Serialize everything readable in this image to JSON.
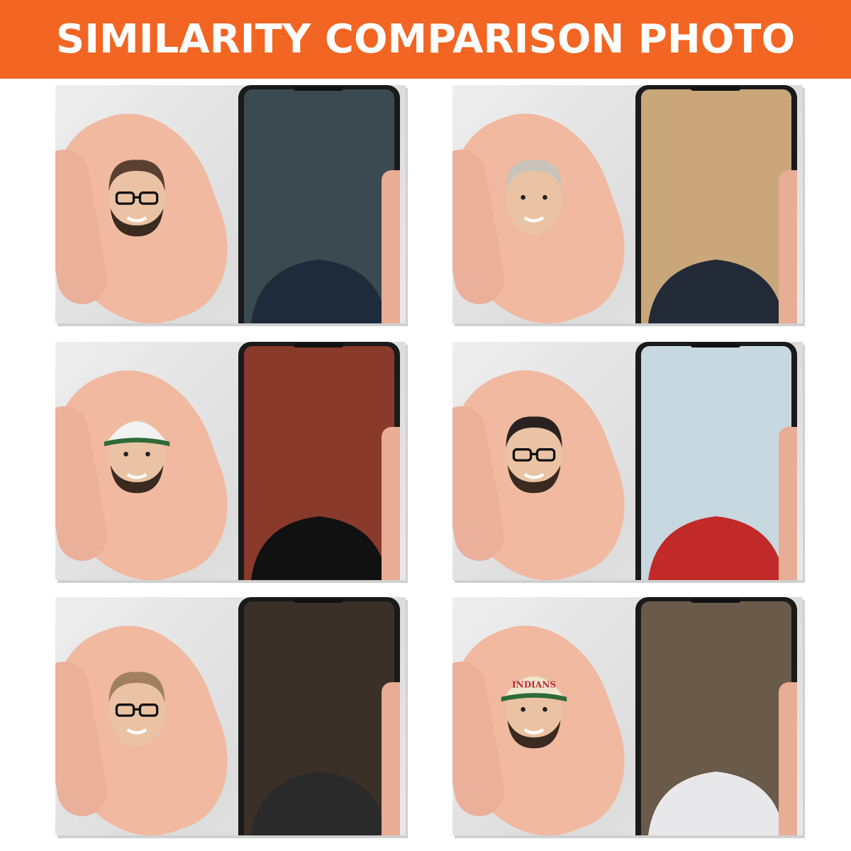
{
  "header": {
    "title": "SIMILARITY COMPARISON PHOTO",
    "background": "#f26522"
  },
  "panels": [
    {
      "id": "man-beard-glasses",
      "screen_bg": "#3a4a50",
      "shirt": "#1f2a3a",
      "hair": "#5a4030",
      "beard": true,
      "glasses": true,
      "cap": null
    },
    {
      "id": "man-suit-grey-hair",
      "screen_bg": "#c9a77a",
      "shirt": "#222a38",
      "hair": "#c8c4bc",
      "beard": false,
      "glasses": false,
      "cap": null
    },
    {
      "id": "man-white-cap",
      "screen_bg": "#8a3a2a",
      "shirt": "#111111",
      "hair": "#222",
      "beard": true,
      "glasses": false,
      "cap": {
        "color": "#f2f2f2",
        "text": ""
      }
    },
    {
      "id": "man-red-shirt-glasses",
      "screen_bg": "#c8d8e0",
      "shirt": "#c22a2a",
      "hair": "#2a2220",
      "beard": true,
      "glasses": true,
      "cap": null
    },
    {
      "id": "man-selfie-glasses",
      "screen_bg": "#3a3028",
      "shirt": "#2a2a2a",
      "hair": "#a08060",
      "beard": false,
      "glasses": true,
      "cap": null
    },
    {
      "id": "man-indians-cap",
      "screen_bg": "#6a5a4a",
      "shirt": "#e8e8ea",
      "hair": "#3a2a20",
      "beard": true,
      "glasses": false,
      "cap": {
        "color": "#efe6cf",
        "text": "INDIANS"
      }
    }
  ]
}
